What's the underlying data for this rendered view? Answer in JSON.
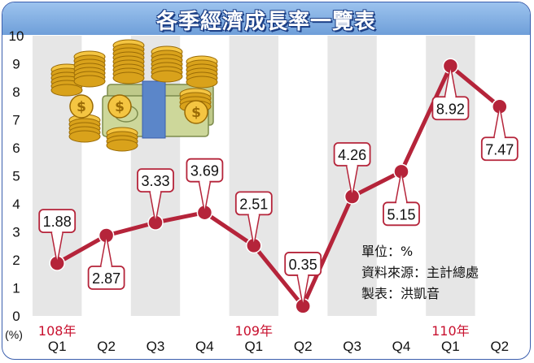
{
  "chart_data": {
    "type": "line",
    "title": "各季經濟成長率一覽表",
    "ylabel": "(%)",
    "ylim": [
      0,
      10
    ],
    "yticks": [
      "0",
      "1",
      "2",
      "3",
      "4",
      "5",
      "6",
      "7",
      "8",
      "9",
      "10"
    ],
    "categories": [
      "Q1",
      "Q2",
      "Q3",
      "Q4",
      "Q1",
      "Q2",
      "Q3",
      "Q4",
      "Q1",
      "Q2"
    ],
    "year_labels": [
      {
        "index": 0,
        "label": "108年"
      },
      {
        "index": 4,
        "label": "109年"
      },
      {
        "index": 8,
        "label": "110年"
      }
    ],
    "data_labels": [
      "1.88",
      "2.87",
      "3.33",
      "3.69",
      "2.51",
      "0.35",
      "4.26",
      "5.15",
      "8.92",
      "7.47"
    ],
    "series": [
      {
        "values": [
          1.88,
          2.87,
          3.33,
          3.69,
          2.51,
          0.35,
          4.26,
          5.15,
          8.92,
          7.47
        ]
      }
    ],
    "grid": true,
    "colors": {
      "line": "#b5243a",
      "marker": "#b5243a",
      "year_label": "#c8102e",
      "stripe": "#e6e6e6",
      "title_bar": "#8ab4e6"
    }
  },
  "notes": {
    "unit": "單位：%",
    "source": "資料來源：主計總處",
    "maker": "製表：洪凱音"
  },
  "decoration": "coins-and-money-stack-illustration"
}
